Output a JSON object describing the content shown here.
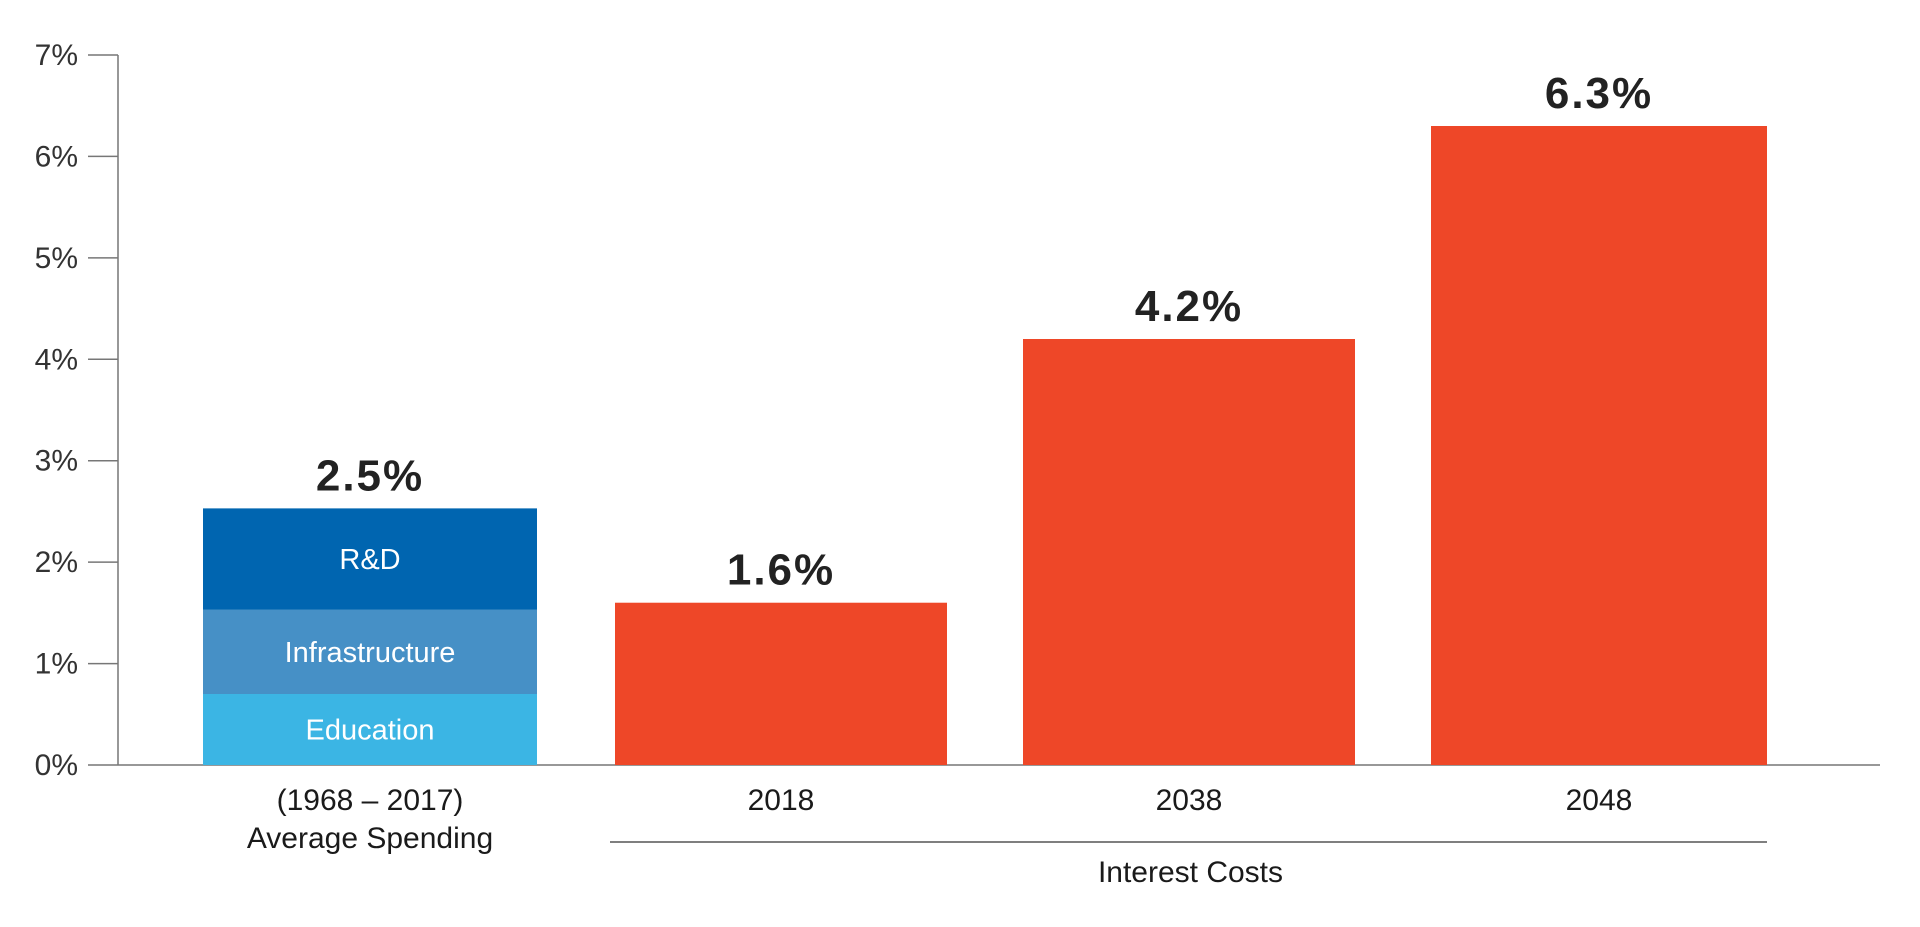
{
  "chart_data": {
    "type": "bar",
    "title": "",
    "xlabel": "",
    "ylabel": "",
    "ylim": [
      0,
      7
    ],
    "y_ticks": [
      "0%",
      "1%",
      "2%",
      "3%",
      "4%",
      "5%",
      "6%",
      "7%"
    ],
    "grid": false,
    "categories": [
      {
        "label_lines": [
          "(1968 – 2017)",
          "Average Spending"
        ],
        "total_label": "2.5%"
      },
      {
        "label_lines": [
          "2018"
        ],
        "total_label": "1.6%"
      },
      {
        "label_lines": [
          "2038"
        ],
        "total_label": "4.2%"
      },
      {
        "label_lines": [
          "2048"
        ],
        "total_label": "6.3%"
      }
    ],
    "stacked_bar": {
      "category_index": 0,
      "segments": [
        {
          "name": "Education",
          "value": 0.7,
          "color": "#3bb5e4"
        },
        {
          "name": "Infrastructure",
          "value": 0.83,
          "color": "#4690c6"
        },
        {
          "name": "R&D",
          "value": 1.0,
          "color": "#0065b0"
        }
      ]
    },
    "series": [
      {
        "values": [
          null,
          1.6,
          4.2,
          6.3
        ],
        "color": "#ee4728"
      }
    ],
    "group_label": {
      "text": "Interest Costs",
      "category_indices": [
        1,
        2,
        3
      ]
    }
  }
}
